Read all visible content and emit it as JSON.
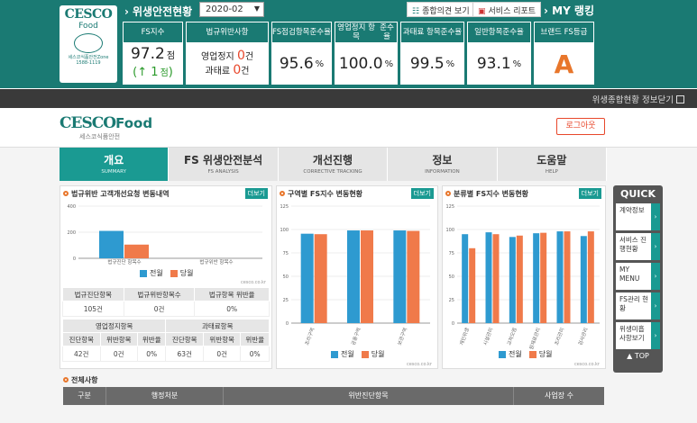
{
  "top": {
    "logo": {
      "brand": "CESCO",
      "sub": "Food",
      "tagline": "세스코식품안전Zone",
      "phone": "1588-1119"
    },
    "title": "위생안전현황",
    "period": "2020-02",
    "buttons": {
      "opinion": "종합의견 보기",
      "report": "서비스 리포트"
    },
    "myrank": "MY 랭킹",
    "kpis": [
      {
        "header": "FS지수",
        "value": "97.2",
        "unit": "점",
        "sub_arrow": "↑",
        "sub_value": "1",
        "sub_unit": "점"
      },
      {
        "header": "법규위반사항",
        "line1_label": "영업정지",
        "line1_value": "0",
        "line1_unit": "건",
        "line2_label": "과태료",
        "line2_value": "0",
        "line2_unit": "건"
      },
      {
        "header_l1": "FS점검항목",
        "header_l2": "준수율",
        "value": "95.6",
        "unit": "%"
      },
      {
        "header_l1": "영업정지 항목",
        "header_l2": "준수율",
        "value": "100.0",
        "unit": "%"
      },
      {
        "header_l1": "과태료 항목",
        "header_l2": "준수율",
        "value": "99.5",
        "unit": "%"
      },
      {
        "header_l1": "일반항목",
        "header_l2": "준수율",
        "value": "93.1",
        "unit": "%"
      },
      {
        "header": "브랜드 FS등급",
        "value": "A"
      }
    ]
  },
  "graybar": {
    "text": "위생종합현황 정보닫기"
  },
  "site": {
    "logo_a": "CESCO",
    "logo_b": "Food",
    "logo_c": "세스코식품안전",
    "logout": "로그아웃",
    "nav": [
      {
        "title": "개요",
        "sub": "SUMMARY"
      },
      {
        "title": "FS 위생안전분석",
        "sub": "FS ANALYSIS"
      },
      {
        "title": "개선진행",
        "sub": "CORRECTIVE TRACKING"
      },
      {
        "title": "정보",
        "sub": "INFORMATION"
      },
      {
        "title": "도움말",
        "sub": "HELP"
      }
    ]
  },
  "panels": {
    "p1": {
      "title": "법규위반 고객개선요청 변동내역",
      "more": "더보기",
      "source": "cesco.co.kr"
    },
    "p2": {
      "title": "구역별 FS지수 변동현황",
      "more": "더보기",
      "source": "cesco.co.kr"
    },
    "p3": {
      "title": "분류별 FS지수 변동현황",
      "more": "더보기",
      "source": "cesco.co.kr"
    }
  },
  "legend": {
    "prev": "전월",
    "curr": "당월"
  },
  "table1": {
    "headers": [
      "법규진단항목",
      "법규위반항목수",
      "법규항목 위반율"
    ],
    "values": [
      "105건",
      "0건",
      "0%"
    ]
  },
  "table2": {
    "group1": "영업정지항목",
    "group2": "과태료항목",
    "headers": [
      "진단항목",
      "위반항목",
      "위반율",
      "진단항목",
      "위반항목",
      "위반율"
    ],
    "values": [
      "42건",
      "0건",
      "0%",
      "63건",
      "0건",
      "0%"
    ]
  },
  "quick": {
    "title": "QUICK",
    "items": [
      "계약정보",
      "서비스 진행현황",
      "MY MENU",
      "FS관리 현황",
      "위생미흡 사항보기"
    ],
    "top": "TOP"
  },
  "all": {
    "title": "전체사항",
    "columns": [
      "구분",
      "행정처분",
      "위반진단항목",
      "사업장 수"
    ]
  },
  "chart_data": [
    {
      "type": "bar",
      "categories": [
        "법규진단 항목수",
        "법규위반 항목수"
      ],
      "series": [
        {
          "name": "전월",
          "values": [
            210,
            0
          ]
        },
        {
          "name": "당월",
          "values": [
            105,
            0
          ]
        }
      ],
      "ylim": [
        0,
        400
      ],
      "yticks": [
        0,
        200,
        400
      ],
      "colors": [
        "#2e9ad0",
        "#f07a4a"
      ]
    },
    {
      "type": "bar",
      "categories": [
        "조리구역",
        "공용구역",
        "보관구역"
      ],
      "series": [
        {
          "name": "전월",
          "values": [
            95.5,
            99,
            99
          ]
        },
        {
          "name": "당월",
          "values": [
            95,
            99,
            98.5
          ]
        }
      ],
      "ylim": [
        0,
        125
      ],
      "yticks": [
        0,
        25,
        50,
        75,
        100,
        125
      ],
      "colors": [
        "#2e9ad0",
        "#f07a4a"
      ]
    },
    {
      "type": "bar",
      "categories": [
        "개인위생",
        "시설관리",
        "교차오염",
        "원재료관리",
        "조리관리",
        "검사관리"
      ],
      "series": [
        {
          "name": "전월",
          "values": [
            95,
            97,
            92,
            96,
            98,
            93
          ]
        },
        {
          "name": "당월",
          "values": [
            80,
            95,
            93.5,
            96.5,
            98,
            98
          ]
        }
      ],
      "ylim": [
        0,
        125
      ],
      "yticks": [
        0,
        25,
        50,
        75,
        100,
        125
      ],
      "colors": [
        "#2e9ad0",
        "#f07a4a"
      ]
    }
  ]
}
